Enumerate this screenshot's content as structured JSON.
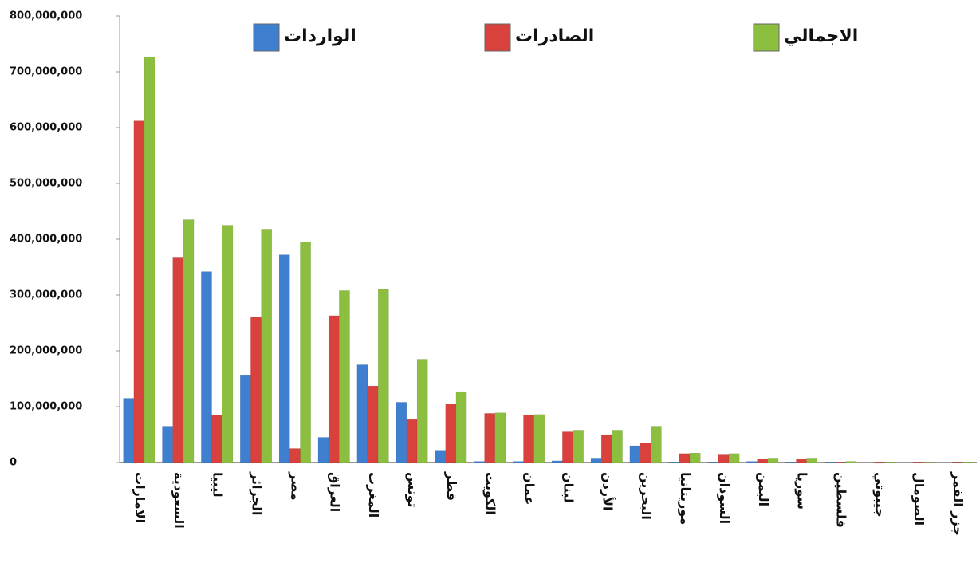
{
  "chart_data": {
    "type": "bar",
    "categories": [
      "الامارات",
      "السعودية",
      "ليبيا",
      "الجزائر",
      "مصر",
      "العراق",
      "المغرب",
      "تونس",
      "قطر",
      "الكويت",
      "عمان",
      "لبنان",
      "الأردن",
      "البحرين",
      "موريتانيا",
      "السودان",
      "اليمن",
      "سوريا",
      "فلسطين",
      "جيبوتي",
      "الصومال",
      "جزر القمر"
    ],
    "series": [
      {
        "name": "الواردات",
        "color": "#3f7fcf",
        "values": [
          115000000,
          65000000,
          342000000,
          157000000,
          372000000,
          45000000,
          175000000,
          108000000,
          22000000,
          2000000,
          2000000,
          3000000,
          8000000,
          30000000,
          1000000,
          1000000,
          2000000,
          1000000,
          1000000,
          0,
          0,
          0
        ]
      },
      {
        "name": "الصادرات",
        "color": "#d9413c",
        "values": [
          612000000,
          368000000,
          85000000,
          261000000,
          25000000,
          263000000,
          137000000,
          77000000,
          105000000,
          88000000,
          85000000,
          55000000,
          50000000,
          35000000,
          16000000,
          15000000,
          6000000,
          7000000,
          1000000,
          1000000,
          1000000,
          1000000
        ]
      },
      {
        "name": "الاجمالي",
        "color": "#8cbf3f",
        "values": [
          727000000,
          435000000,
          425000000,
          418000000,
          395000000,
          308000000,
          310000000,
          185000000,
          127000000,
          89000000,
          86000000,
          58000000,
          58000000,
          65000000,
          17000000,
          16000000,
          8000000,
          8000000,
          2000000,
          1000000,
          1000000,
          1000000
        ]
      }
    ],
    "ylim": [
      0,
      800000000
    ],
    "yticks": [
      0,
      {
        "value": 100000000,
        "label": "100,000,000"
      },
      {
        "value": 200000000,
        "label": "200,000,000"
      },
      {
        "value": 300000000,
        "label": "300,000,000"
      },
      {
        "value": 400000000,
        "label": "400,000,000"
      },
      {
        "value": 500000000,
        "label": "500,000,000"
      },
      {
        "value": 600000000,
        "label": "600,000,000"
      },
      {
        "value": 700000000,
        "label": "700,000,000"
      },
      {
        "value": 800000000,
        "label": "800,000,000"
      }
    ],
    "grid": false,
    "legend": "top"
  }
}
